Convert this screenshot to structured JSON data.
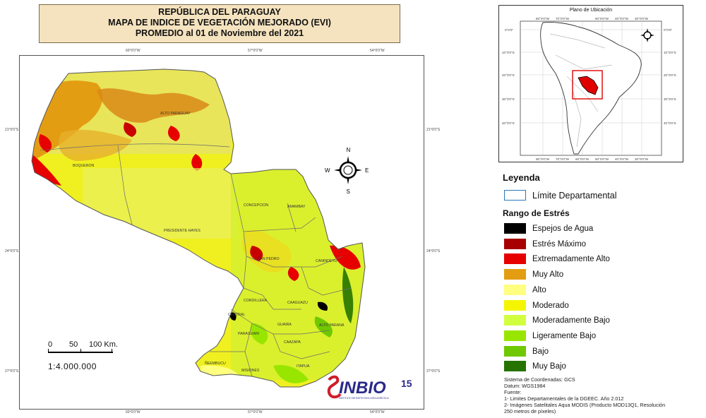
{
  "title": {
    "line1": "REPÚBLICA DEL PARAGUAY",
    "line2": "MAPA DE INDICE DE VEGETACIÓN MEJORADO (EVI)",
    "line3": "PROMEDIO al 01 de Noviembre del 2021"
  },
  "map": {
    "lon_ticks": [
      "60°0'0\"W",
      "57°0'0\"W",
      "54°0'0\"W"
    ],
    "lat_ticks": [
      "21°0'0\"S",
      "24°0'0\"S",
      "27°0'0\"S"
    ],
    "departments": [
      "ALTO PARAGUAY",
      "BOQUERON",
      "PRESIDENTE HAYES",
      "CONCEPCION",
      "AMAMBAY",
      "SAN PEDRO",
      "CANINDEYU",
      "CORDILLERA",
      "CENTRAL",
      "CAAGUAZU",
      "GUAIRA",
      "ALTO PARANA",
      "PARAGUARI",
      "CAAZAPA",
      "ÑEEMBUCU",
      "MISIONES",
      "ITAPUA"
    ],
    "compass": {
      "n": "N",
      "s": "S",
      "e": "E",
      "w": "W"
    }
  },
  "scalebar": {
    "labels": [
      "0",
      "50",
      "100 Km."
    ],
    "ratio": "1:4.000.000"
  },
  "inset": {
    "title": "Plano de Ubicación",
    "lon_ticks": [
      "80°0'0\"W",
      "70°0'0\"W",
      "60°0'0\"W",
      "50°0'0\"W",
      "40°0'0\"W",
      "30°0'0\"W"
    ],
    "lat_ticks_left": [
      "0°0'0\"",
      "10°0'0\"S",
      "20°0'0\"S",
      "30°0'0\"S",
      "40°0'0\"S"
    ],
    "lat_ticks_right": [
      "0°0'0\"",
      "10°0'0\"S",
      "20°0'0\"S",
      "30°0'0\"S",
      "40°0'0\"S"
    ]
  },
  "legend": {
    "heading": "Leyenda",
    "boundary_label": "Límite Departamental",
    "boundary_color": "#2c78b8",
    "range_heading": "Rango de Estrés",
    "classes": [
      {
        "label": "Espejos de Agua",
        "color": "#000000"
      },
      {
        "label": "Estrés Máximo",
        "color": "#a80000"
      },
      {
        "label": "Extremadamente Alto",
        "color": "#e60000"
      },
      {
        "label": "Muy Alto",
        "color": "#e39d12"
      },
      {
        "label": "Alto",
        "color": "#ffff80"
      },
      {
        "label": "Moderado",
        "color": "#f5f500"
      },
      {
        "label": "Moderadamente Bajo",
        "color": "#d1ff40"
      },
      {
        "label": "Ligeramente Bajo",
        "color": "#98e600"
      },
      {
        "label": "Bajo",
        "color": "#70c800"
      },
      {
        "label": "Muy Bajo",
        "color": "#267300"
      }
    ]
  },
  "notes": {
    "line1": "Sistema de Coordenadas: GCS",
    "line2": "Datum: WGS1984",
    "line3": "Fuente:",
    "line4": "1- Limites Departamentales de la DGEEC. Año 2.012",
    "line5": "2- Imágenes Satelitales Aqua MODIS (Producto MOD13Q1, Resolución",
    "line6": "250 metros de píxeles)"
  },
  "logo": {
    "text": "INBIO",
    "subtitle": "INSTITUTO DE BIOTECNOLOGÍA AGRÍCOLA",
    "anniversary": "15"
  }
}
